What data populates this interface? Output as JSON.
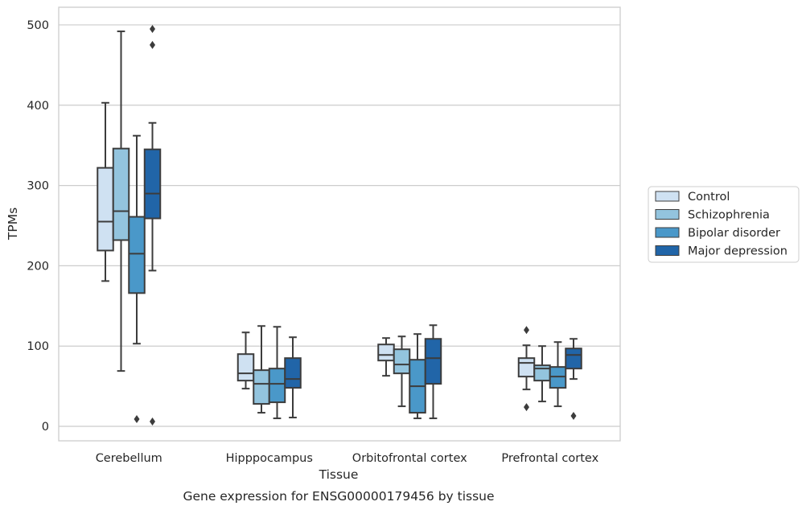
{
  "chart_data": {
    "type": "box",
    "xlabel": "Tissue",
    "ylabel": "TPMs",
    "caption": "Gene expression for ENSG00000179456 by tissue",
    "ylim": [
      -18,
      522
    ],
    "yticks": [
      0,
      100,
      200,
      300,
      400,
      500
    ],
    "grid": true,
    "legend_position": "outside-right",
    "categories": [
      "Cerebellum",
      "Hipppocampus",
      "Orbitofrontal cortex",
      "Prefrontal cortex"
    ],
    "series": [
      {
        "name": "Control",
        "color": "#cfe1f2",
        "boxes": [
          {
            "whislo": 181,
            "q1": 219,
            "med": 255,
            "q3": 322,
            "whishi": 403,
            "fliers": []
          },
          {
            "whislo": 47,
            "q1": 57,
            "med": 66,
            "q3": 90,
            "whishi": 117,
            "fliers": []
          },
          {
            "whislo": 63,
            "q1": 82,
            "med": 89,
            "q3": 102,
            "whishi": 110,
            "fliers": []
          },
          {
            "whislo": 46,
            "q1": 62,
            "med": 79,
            "q3": 85,
            "whishi": 101,
            "fliers": [
              120,
              24
            ]
          }
        ]
      },
      {
        "name": "Schizophrenia",
        "color": "#93c4de",
        "boxes": [
          {
            "whislo": 69,
            "q1": 232,
            "med": 268,
            "q3": 346,
            "whishi": 492,
            "fliers": []
          },
          {
            "whislo": 17,
            "q1": 28,
            "med": 53,
            "q3": 70,
            "whishi": 125,
            "fliers": []
          },
          {
            "whislo": 25,
            "q1": 66,
            "med": 77,
            "q3": 96,
            "whishi": 112,
            "fliers": []
          },
          {
            "whislo": 31,
            "q1": 57,
            "med": 72,
            "q3": 76,
            "whishi": 100,
            "fliers": []
          }
        ]
      },
      {
        "name": "Bipolar disorder",
        "color": "#4a98c9",
        "boxes": [
          {
            "whislo": 103,
            "q1": 166,
            "med": 215,
            "q3": 261,
            "whishi": 362,
            "fliers": [
              9
            ]
          },
          {
            "whislo": 10,
            "q1": 30,
            "med": 53,
            "q3": 72,
            "whishi": 124,
            "fliers": []
          },
          {
            "whislo": 10,
            "q1": 17,
            "med": 50,
            "q3": 83,
            "whishi": 115,
            "fliers": []
          },
          {
            "whislo": 25,
            "q1": 48,
            "med": 62,
            "q3": 74,
            "whishi": 105,
            "fliers": []
          }
        ]
      },
      {
        "name": "Major depression",
        "color": "#2165a8",
        "boxes": [
          {
            "whislo": 194,
            "q1": 259,
            "med": 290,
            "q3": 345,
            "whishi": 378,
            "fliers": [
              495,
              475,
              6
            ]
          },
          {
            "whislo": 11,
            "q1": 48,
            "med": 59,
            "q3": 85,
            "whishi": 111,
            "fliers": []
          },
          {
            "whislo": 10,
            "q1": 53,
            "med": 85,
            "q3": 109,
            "whishi": 126,
            "fliers": []
          },
          {
            "whislo": 59,
            "q1": 72,
            "med": 89,
            "q3": 97,
            "whishi": 109,
            "fliers": [
              13
            ]
          }
        ]
      }
    ]
  }
}
